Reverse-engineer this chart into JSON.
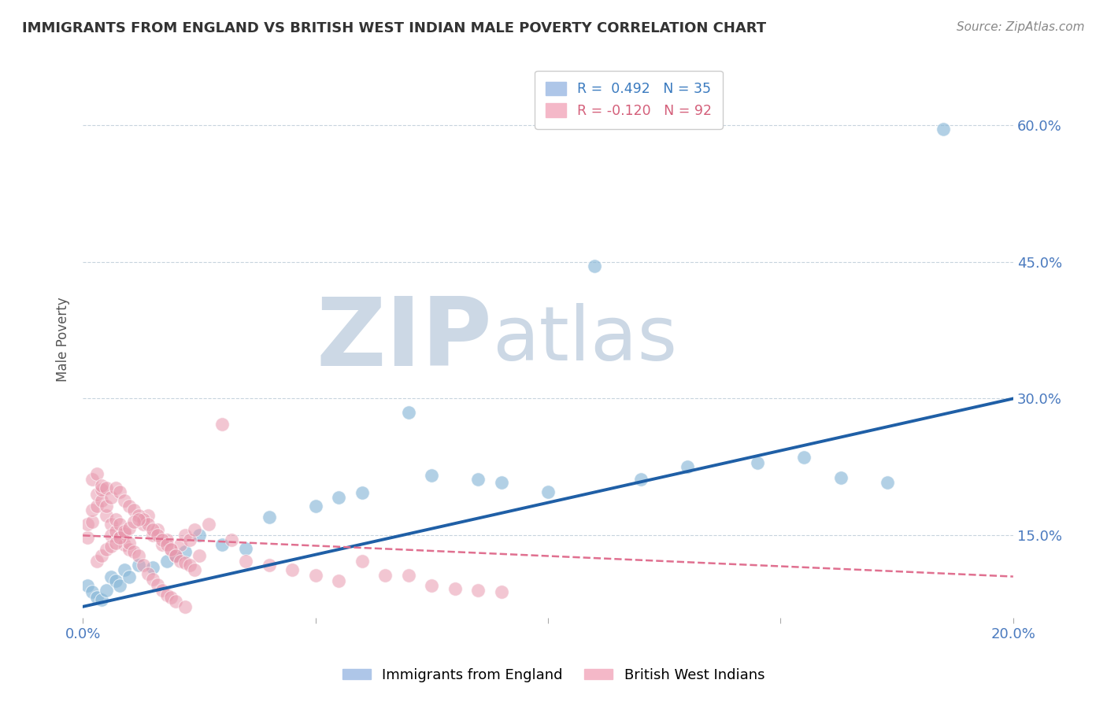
{
  "title": "IMMIGRANTS FROM ENGLAND VS BRITISH WEST INDIAN MALE POVERTY CORRELATION CHART",
  "source": "Source: ZipAtlas.com",
  "ylabel": "Male Poverty",
  "xlim": [
    0.0,
    0.2
  ],
  "ylim": [
    0.06,
    0.67
  ],
  "xtick_positions": [
    0.0,
    0.05,
    0.1,
    0.15,
    0.2
  ],
  "xticklabels": [
    "0.0%",
    "",
    "",
    "",
    "20.0%"
  ],
  "ytick_positions": [
    0.15,
    0.3,
    0.45,
    0.6
  ],
  "ytick_labels": [
    "15.0%",
    "30.0%",
    "45.0%",
    "60.0%"
  ],
  "legend_entries": [
    {
      "label_r": "R =  0.492",
      "label_n": "  N = 35",
      "color": "#aec6e8"
    },
    {
      "label_r": "R = -0.120",
      "label_n": "  N = 92",
      "color": "#f4b8c8"
    }
  ],
  "blue_scatter_x": [
    0.001,
    0.002,
    0.003,
    0.004,
    0.005,
    0.006,
    0.007,
    0.008,
    0.009,
    0.01,
    0.012,
    0.015,
    0.018,
    0.02,
    0.022,
    0.025,
    0.03,
    0.035,
    0.04,
    0.05,
    0.055,
    0.06,
    0.07,
    0.075,
    0.085,
    0.09,
    0.1,
    0.11,
    0.12,
    0.13,
    0.145,
    0.155,
    0.163,
    0.173,
    0.185
  ],
  "blue_scatter_y": [
    0.095,
    0.088,
    0.082,
    0.08,
    0.09,
    0.105,
    0.1,
    0.095,
    0.112,
    0.105,
    0.118,
    0.115,
    0.122,
    0.128,
    0.132,
    0.15,
    0.14,
    0.136,
    0.17,
    0.182,
    0.192,
    0.197,
    0.285,
    0.216,
    0.212,
    0.208,
    0.198,
    0.445,
    0.212,
    0.225,
    0.23,
    0.236,
    0.213,
    0.208,
    0.595
  ],
  "pink_scatter_x": [
    0.001,
    0.001,
    0.002,
    0.002,
    0.003,
    0.003,
    0.004,
    0.004,
    0.005,
    0.005,
    0.006,
    0.006,
    0.007,
    0.007,
    0.008,
    0.008,
    0.009,
    0.009,
    0.01,
    0.01,
    0.011,
    0.012,
    0.013,
    0.014,
    0.015,
    0.016,
    0.017,
    0.018,
    0.019,
    0.02,
    0.021,
    0.022,
    0.023,
    0.024,
    0.025,
    0.027,
    0.03,
    0.032,
    0.035,
    0.04,
    0.045,
    0.05,
    0.055,
    0.06,
    0.065,
    0.07,
    0.075,
    0.08,
    0.085,
    0.09,
    0.002,
    0.003,
    0.004,
    0.005,
    0.006,
    0.007,
    0.008,
    0.009,
    0.01,
    0.011,
    0.012,
    0.013,
    0.014,
    0.015,
    0.016,
    0.017,
    0.018,
    0.019,
    0.02,
    0.021,
    0.022,
    0.023,
    0.024,
    0.003,
    0.004,
    0.005,
    0.006,
    0.007,
    0.008,
    0.009,
    0.01,
    0.011,
    0.012,
    0.013,
    0.014,
    0.015,
    0.016,
    0.017,
    0.018,
    0.019,
    0.02,
    0.022
  ],
  "pink_scatter_y": [
    0.148,
    0.162,
    0.165,
    0.178,
    0.182,
    0.195,
    0.188,
    0.2,
    0.172,
    0.182,
    0.162,
    0.15,
    0.155,
    0.168,
    0.162,
    0.148,
    0.14,
    0.152,
    0.135,
    0.142,
    0.132,
    0.128,
    0.162,
    0.172,
    0.15,
    0.156,
    0.14,
    0.145,
    0.135,
    0.128,
    0.14,
    0.15,
    0.145,
    0.156,
    0.128,
    0.162,
    0.272,
    0.145,
    0.122,
    0.118,
    0.112,
    0.106,
    0.1,
    0.122,
    0.106,
    0.106,
    0.095,
    0.092,
    0.09,
    0.088,
    0.212,
    0.218,
    0.205,
    0.202,
    0.192,
    0.202,
    0.198,
    0.188,
    0.182,
    0.178,
    0.172,
    0.168,
    0.162,
    0.156,
    0.15,
    0.145,
    0.14,
    0.135,
    0.128,
    0.122,
    0.12,
    0.118,
    0.112,
    0.122,
    0.128,
    0.135,
    0.138,
    0.142,
    0.148,
    0.155,
    0.158,
    0.165,
    0.168,
    0.118,
    0.108,
    0.102,
    0.096,
    0.09,
    0.085,
    0.082,
    0.078,
    0.072
  ],
  "blue_line_x": [
    0.0,
    0.2
  ],
  "blue_line_y": [
    0.072,
    0.3
  ],
  "pink_line_x": [
    0.0,
    0.2
  ],
  "pink_line_y": [
    0.15,
    0.105
  ],
  "watermark_zip": "ZIP",
  "watermark_atlas": "atlas",
  "watermark_color": "#ccd8e5",
  "blue_color": "#89b8d8",
  "pink_color": "#e898ad",
  "blue_line_color": "#1f5fa6",
  "pink_line_color": "#e07090",
  "background_color": "#ffffff",
  "grid_color": "#c8d4de",
  "title_color": "#333333",
  "source_color": "#888888",
  "tick_color": "#4a7abf"
}
